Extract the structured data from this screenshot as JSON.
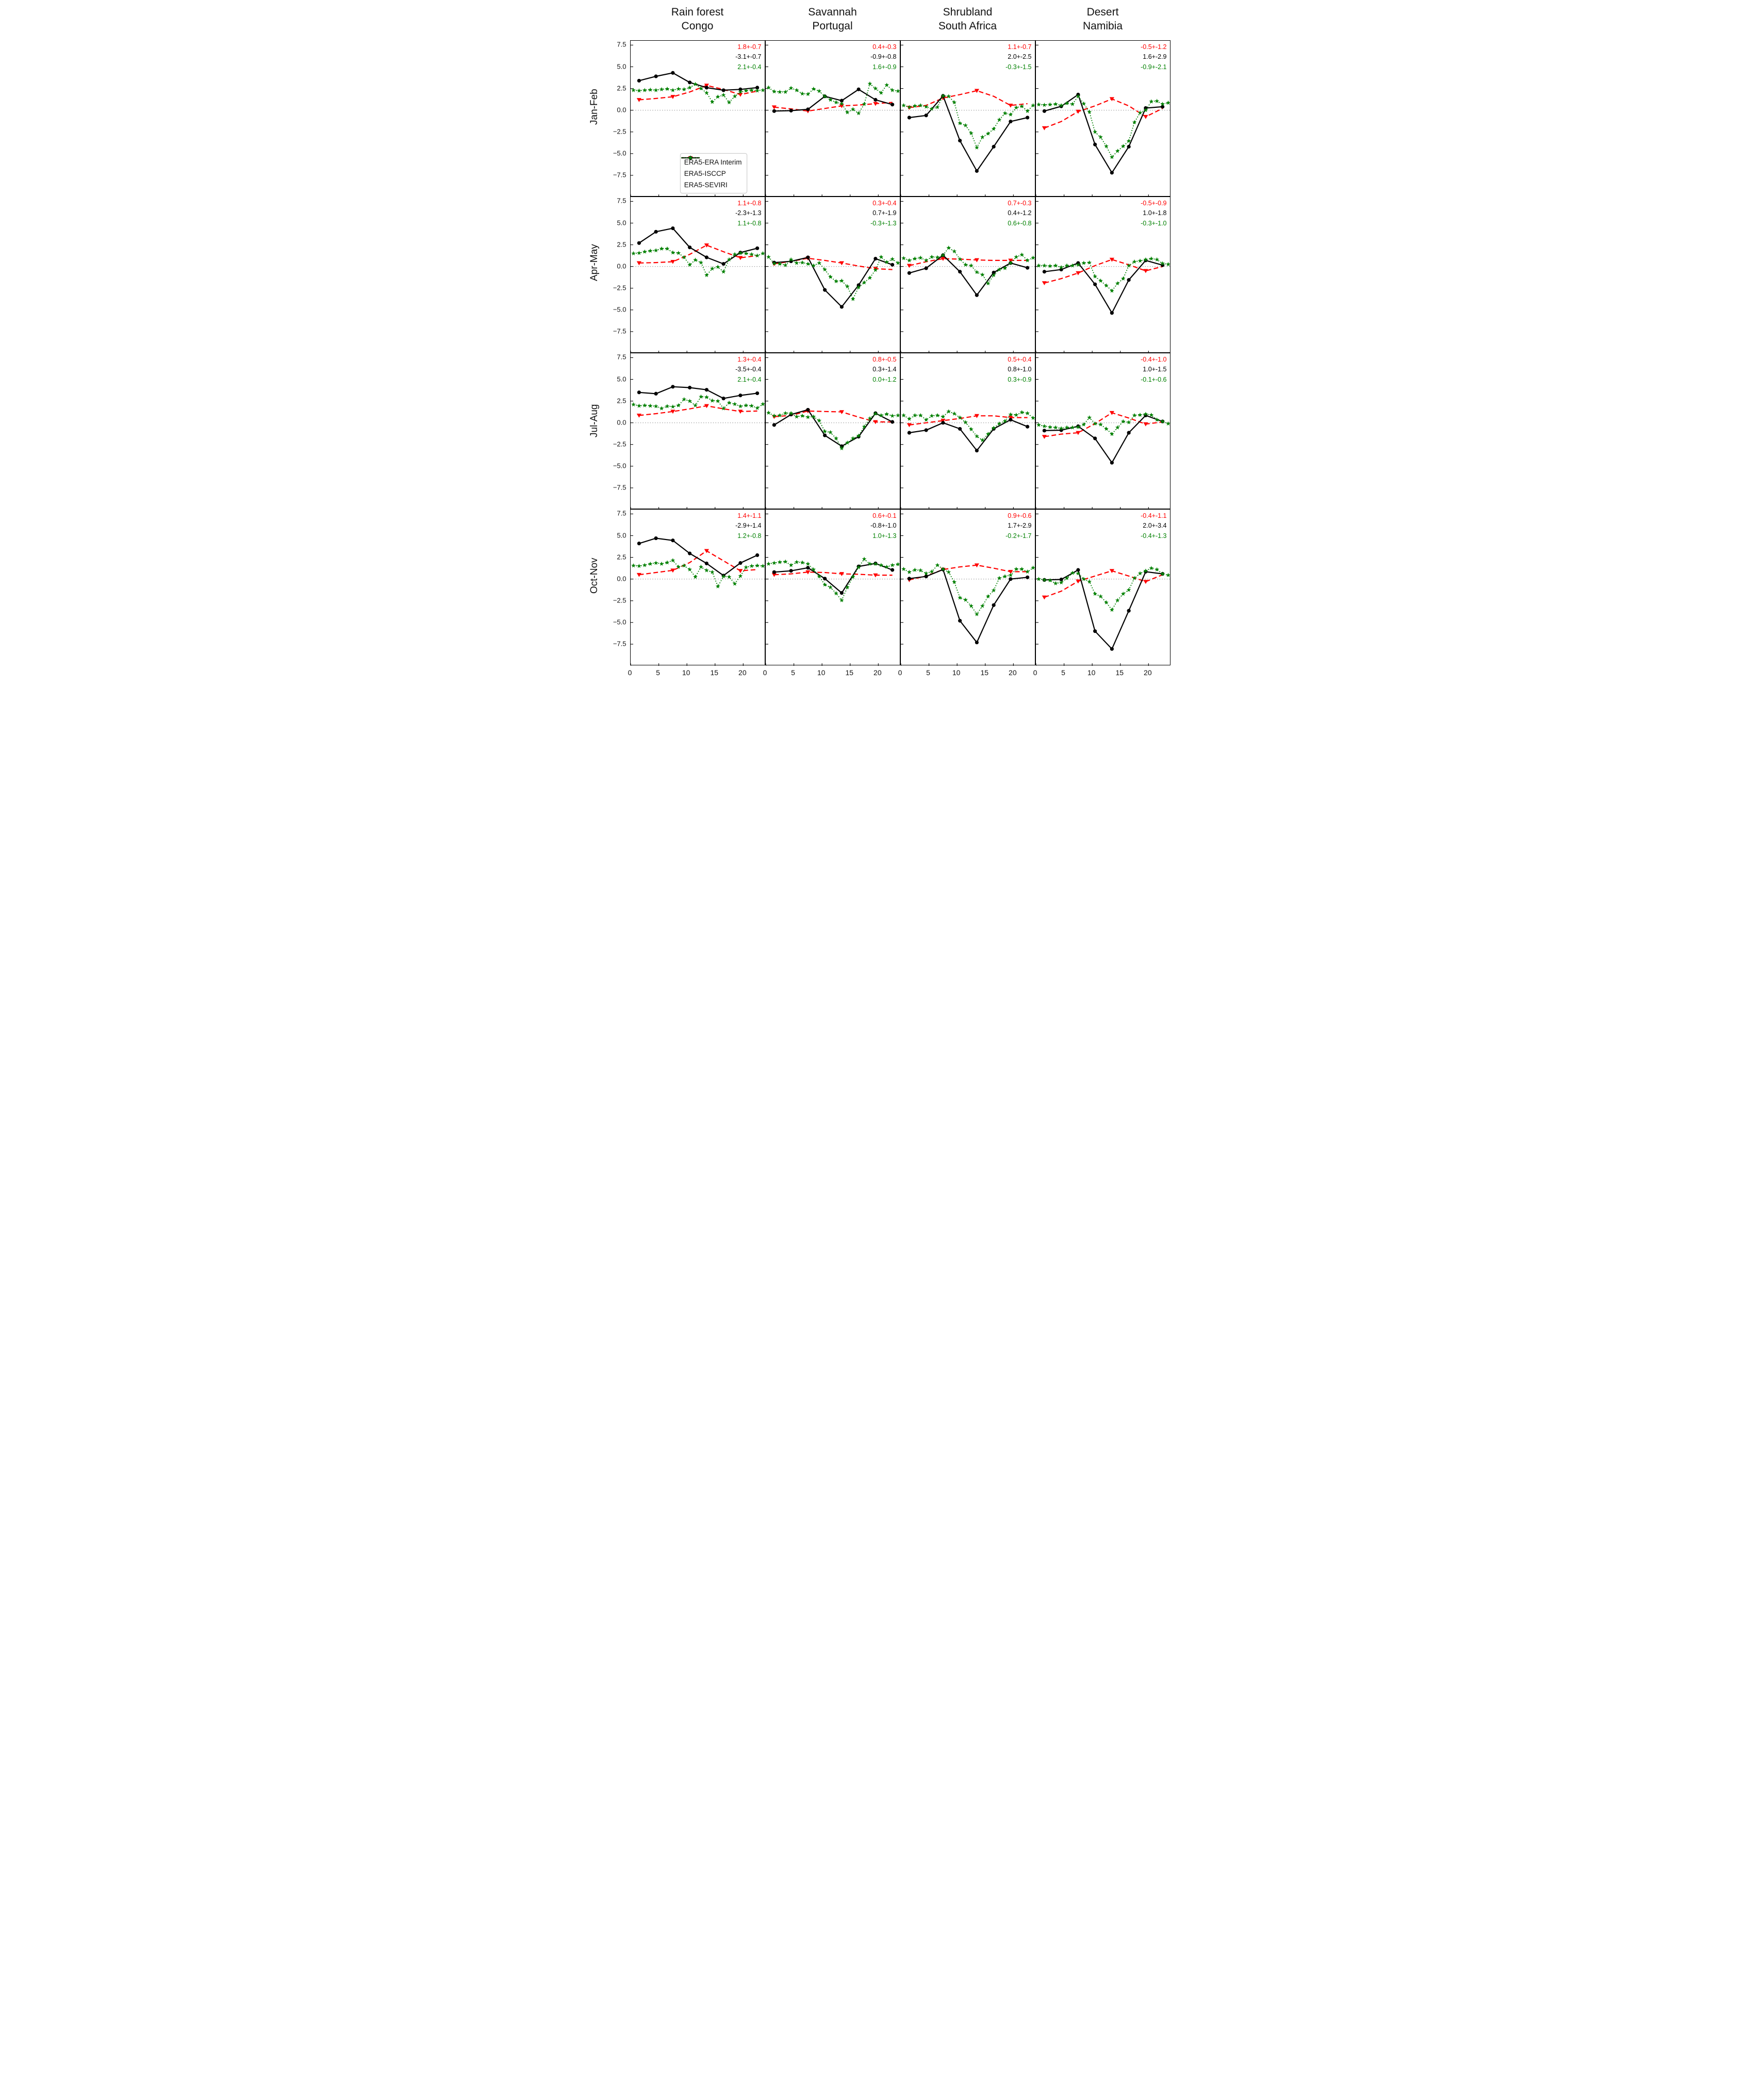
{
  "figure": {
    "columns": [
      {
        "title_line1": "Rain forest",
        "title_line2": "Congo"
      },
      {
        "title_line1": "Savannah",
        "title_line2": "Portugal"
      },
      {
        "title_line1": "Shrubland",
        "title_line2": "South Africa"
      },
      {
        "title_line1": "Desert",
        "title_line2": "Namibia"
      }
    ],
    "rows": [
      "Jan-Feb",
      "Apr-May",
      "Jul-Aug",
      "Oct-Nov"
    ],
    "legend": [
      {
        "label": "ERA5-ERA Interim",
        "series": "era5_era_interim"
      },
      {
        "label": "ERA5-ISCCP",
        "series": "era5_isccp"
      },
      {
        "label": "ERA5-SEVIRI",
        "series": "era5_seviri"
      }
    ],
    "colors": {
      "era5_era_interim": "#ff0000",
      "era5_isccp": "#000000",
      "era5_seviri": "#008000",
      "zero_line": "#909090",
      "axis": "#000000"
    }
  },
  "chart_data": {
    "type": "line",
    "xlim": [
      0,
      24
    ],
    "ylim": [
      -10,
      8
    ],
    "xticks": [
      0,
      5,
      10,
      15,
      20
    ],
    "yticks": [
      7.5,
      5.0,
      2.5,
      0.0,
      -2.5,
      -5.0,
      -7.5
    ],
    "ytick_labels": [
      "7.5",
      "5.0",
      "2.5",
      "0.0",
      "−2.5",
      "−5.0",
      "−7.5"
    ],
    "grid": false,
    "legend_position": "lower center of first panel",
    "x_hours_3h": [
      1.5,
      4.5,
      7.5,
      10.5,
      13.5,
      16.5,
      19.5,
      22.5
    ],
    "x_hours_1h": [
      0.5,
      1.5,
      2.5,
      3.5,
      4.5,
      5.5,
      6.5,
      7.5,
      8.5,
      9.5,
      10.5,
      11.5,
      12.5,
      13.5,
      14.5,
      15.5,
      16.5,
      17.5,
      18.5,
      19.5,
      20.5,
      21.5,
      22.5,
      23.5
    ],
    "panels": [
      {
        "region": "Rain forest Congo",
        "season": "Jan-Feb",
        "annotations": {
          "era5_era_interim": "1.8+-0.7",
          "era5_isccp": "-3.1+-0.7",
          "era5_seviri": "2.1+-0.4"
        },
        "series": {
          "era5_era_interim": [
            1.2,
            1.35,
            1.55,
            2.1,
            2.85,
            2.4,
            1.8,
            2.2
          ],
          "era5_isccp": [
            3.4,
            3.9,
            4.3,
            3.2,
            2.6,
            2.3,
            2.4,
            2.6
          ],
          "era5_seviri": [
            2.3,
            2.25,
            2.3,
            2.35,
            2.3,
            2.4,
            2.45,
            2.3,
            2.45,
            2.4,
            2.6,
            3.0,
            2.5,
            2.0,
            0.95,
            1.55,
            1.75,
            0.9,
            1.6,
            2.1,
            2.25,
            2.3,
            2.25,
            2.3
          ]
        }
      },
      {
        "region": "Savannah Portugal",
        "season": "Jan-Feb",
        "annotations": {
          "era5_era_interim": "0.4+-0.3",
          "era5_isccp": "-0.9+-0.8",
          "era5_seviri": "1.6+-0.9"
        },
        "series": {
          "era5_era_interim": [
            0.35,
            0.15,
            -0.1,
            0.2,
            0.5,
            0.6,
            0.75,
            0.9
          ],
          "era5_isccp": [
            -0.1,
            -0.05,
            0.1,
            1.6,
            1.1,
            2.4,
            1.2,
            0.65
          ],
          "era5_seviri": [
            2.6,
            2.15,
            2.1,
            2.1,
            2.55,
            2.3,
            1.9,
            1.85,
            2.45,
            2.2,
            1.6,
            1.2,
            0.9,
            0.75,
            -0.25,
            0.1,
            -0.35,
            0.7,
            3.05,
            2.5,
            2.0,
            2.9,
            2.3,
            2.2
          ]
        }
      },
      {
        "region": "Shrubland South Africa",
        "season": "Jan-Feb",
        "annotations": {
          "era5_era_interim": "1.1+-0.7",
          "era5_isccp": "2.0+-2.5",
          "era5_seviri": "-0.3+-1.5"
        },
        "series": {
          "era5_era_interim": [
            0.3,
            0.55,
            1.4,
            1.8,
            2.25,
            1.6,
            0.55,
            0.75
          ],
          "era5_isccp": [
            -0.85,
            -0.6,
            1.65,
            -3.5,
            -7.0,
            -4.2,
            -1.3,
            -0.85
          ],
          "era5_seviri": [
            0.55,
            0.35,
            0.5,
            0.55,
            0.4,
            0.15,
            0.35,
            1.65,
            1.6,
            0.9,
            -1.5,
            -1.75,
            -2.65,
            -4.3,
            -3.1,
            -2.7,
            -2.15,
            -1.1,
            -0.35,
            -0.5,
            0.3,
            0.45,
            -0.1,
            0.55
          ]
        }
      },
      {
        "region": "Desert Namibia",
        "season": "Jan-Feb",
        "annotations": {
          "era5_era_interim": "-0.5+-1.2",
          "era5_isccp": "1.6+-2.9",
          "era5_seviri": "-0.9+-2.1"
        },
        "series": {
          "era5_era_interim": [
            -2.05,
            -1.3,
            -0.15,
            0.5,
            1.3,
            0.5,
            -0.75,
            0.2
          ],
          "era5_isccp": [
            -0.1,
            0.45,
            1.8,
            -3.95,
            -7.2,
            -4.2,
            0.25,
            0.4
          ],
          "era5_seviri": [
            0.65,
            0.6,
            0.65,
            0.7,
            0.55,
            0.8,
            0.7,
            1.6,
            0.75,
            -0.2,
            -2.5,
            -3.1,
            -4.15,
            -5.4,
            -4.7,
            -4.15,
            -3.55,
            -1.4,
            -0.3,
            0.0,
            1.0,
            1.05,
            0.7,
            0.85
          ]
        }
      },
      {
        "region": "Rain forest Congo",
        "season": "Apr-May",
        "annotations": {
          "era5_era_interim": "1.1+-0.8",
          "era5_isccp": "-2.3+-1.3",
          "era5_seviri": "1.1+-0.8"
        },
        "series": {
          "era5_era_interim": [
            0.4,
            0.45,
            0.55,
            1.4,
            2.45,
            1.7,
            1.0,
            1.25
          ],
          "era5_isccp": [
            2.7,
            4.0,
            4.4,
            2.2,
            1.05,
            0.3,
            1.6,
            2.1
          ],
          "era5_seviri": [
            1.5,
            1.55,
            1.7,
            1.8,
            1.85,
            2.05,
            2.05,
            1.6,
            1.55,
            1.05,
            0.2,
            0.75,
            0.45,
            -1.0,
            -0.25,
            -0.05,
            -0.6,
            0.8,
            1.4,
            1.55,
            1.5,
            1.4,
            1.25,
            1.5
          ]
        }
      },
      {
        "region": "Savannah Portugal",
        "season": "Apr-May",
        "annotations": {
          "era5_era_interim": "0.3+-0.4",
          "era5_isccp": "0.7+-1.9",
          "era5_seviri": "-0.3+-1.3"
        },
        "series": {
          "era5_era_interim": [
            0.3,
            0.6,
            0.95,
            0.7,
            0.4,
            0.05,
            -0.25,
            -0.35
          ],
          "era5_isccp": [
            0.45,
            0.6,
            1.05,
            -2.7,
            -4.65,
            -2.15,
            0.9,
            0.2
          ],
          "era5_seviri": [
            1.1,
            0.35,
            0.3,
            0.15,
            0.8,
            0.4,
            0.45,
            0.3,
            0.1,
            0.4,
            -0.35,
            -1.2,
            -1.7,
            -1.65,
            -2.3,
            -3.75,
            -2.4,
            -1.85,
            -1.3,
            -0.4,
            1.1,
            0.5,
            0.85,
            0.4
          ]
        }
      },
      {
        "region": "Shrubland South Africa",
        "season": "Apr-May",
        "annotations": {
          "era5_era_interim": "0.7+-0.3",
          "era5_isccp": "0.4+-1.2",
          "era5_seviri": "0.6+-0.8"
        },
        "series": {
          "era5_era_interim": [
            0.1,
            0.55,
            0.9,
            0.85,
            0.75,
            0.7,
            0.7,
            0.7
          ],
          "era5_isccp": [
            -0.75,
            -0.2,
            1.3,
            -0.6,
            -3.3,
            -0.7,
            0.4,
            -0.15
          ],
          "era5_seviri": [
            0.95,
            0.7,
            0.9,
            1.0,
            0.7,
            1.1,
            1.05,
            1.3,
            2.15,
            1.75,
            0.85,
            0.2,
            0.1,
            -0.65,
            -0.95,
            -1.95,
            -1.0,
            -0.35,
            -0.2,
            0.4,
            1.1,
            1.35,
            0.7,
            1.0
          ]
        }
      },
      {
        "region": "Desert Namibia",
        "season": "Apr-May",
        "annotations": {
          "era5_era_interim": "-0.5+-0.9",
          "era5_isccp": "1.0+-1.8",
          "era5_seviri": "-0.3+-1.0"
        },
        "series": {
          "era5_era_interim": [
            -1.9,
            -1.4,
            -0.75,
            0.1,
            0.8,
            0.2,
            -0.5,
            0.0
          ],
          "era5_isccp": [
            -0.6,
            -0.35,
            0.4,
            -2.05,
            -5.35,
            -1.55,
            0.7,
            0.15
          ],
          "era5_seviri": [
            0.1,
            0.1,
            0.05,
            0.1,
            -0.1,
            0.1,
            0.1,
            0.2,
            0.4,
            0.45,
            -1.15,
            -1.65,
            -2.2,
            -2.8,
            -1.95,
            -1.4,
            0.1,
            0.55,
            0.65,
            0.8,
            0.9,
            0.8,
            0.35,
            0.25
          ]
        }
      },
      {
        "region": "Rain forest Congo",
        "season": "Jul-Aug",
        "annotations": {
          "era5_era_interim": "1.3+-0.4",
          "era5_isccp": "-3.5+-0.4",
          "era5_seviri": "2.1+-0.4"
        },
        "series": {
          "era5_era_interim": [
            0.85,
            1.05,
            1.3,
            1.6,
            1.95,
            1.6,
            1.3,
            1.35
          ],
          "era5_isccp": [
            3.5,
            3.35,
            4.15,
            4.05,
            3.8,
            2.8,
            3.15,
            3.4
          ],
          "era5_seviri": [
            2.1,
            1.95,
            2.0,
            1.95,
            1.9,
            1.65,
            1.9,
            1.85,
            2.0,
            2.7,
            2.5,
            2.0,
            3.0,
            2.95,
            2.55,
            2.5,
            1.65,
            2.3,
            2.15,
            1.9,
            2.0,
            1.95,
            1.7,
            2.15
          ]
        }
      },
      {
        "region": "Savannah Portugal",
        "season": "Jul-Aug",
        "annotations": {
          "era5_era_interim": "0.8+-0.5",
          "era5_isccp": "0.3+-1.4",
          "era5_seviri": "0.0+-1.2"
        },
        "series": {
          "era5_era_interim": [
            0.7,
            0.85,
            1.35,
            1.3,
            1.25,
            0.65,
            0.1,
            0.1
          ],
          "era5_isccp": [
            -0.25,
            0.95,
            1.5,
            -1.45,
            -2.7,
            -1.6,
            1.1,
            0.1
          ],
          "era5_seviri": [
            1.15,
            0.8,
            0.85,
            1.1,
            1.1,
            0.7,
            0.8,
            0.65,
            0.7,
            0.25,
            -1.0,
            -1.1,
            -1.8,
            -2.95,
            -2.3,
            -1.8,
            -1.5,
            -0.45,
            0.5,
            1.05,
            0.85,
            1.0,
            0.8,
            0.85
          ]
        }
      },
      {
        "region": "Shrubland South Africa",
        "season": "Jul-Aug",
        "annotations": {
          "era5_era_interim": "0.5+-0.4",
          "era5_isccp": "0.8+-1.0",
          "era5_seviri": "0.3+-0.9"
        },
        "series": {
          "era5_era_interim": [
            -0.25,
            0.0,
            0.25,
            0.5,
            0.8,
            0.8,
            0.6,
            0.6
          ],
          "era5_isccp": [
            -1.15,
            -0.85,
            0.0,
            -0.7,
            -3.2,
            -0.7,
            0.35,
            -0.45
          ],
          "era5_seviri": [
            0.85,
            0.45,
            0.85,
            0.85,
            0.35,
            0.8,
            0.85,
            0.7,
            1.3,
            1.05,
            0.6,
            0.05,
            -0.75,
            -1.55,
            -2.0,
            -1.3,
            -0.6,
            -0.1,
            0.2,
            0.95,
            0.9,
            1.2,
            1.1,
            0.55
          ]
        }
      },
      {
        "region": "Desert Namibia",
        "season": "Jul-Aug",
        "annotations": {
          "era5_era_interim": "-0.4+-1.0",
          "era5_isccp": "1.0+-1.5",
          "era5_seviri": "-0.1+-0.6"
        },
        "series": {
          "era5_era_interim": [
            -1.6,
            -1.3,
            -1.15,
            -0.1,
            1.15,
            0.55,
            -0.15,
            0.1
          ],
          "era5_isccp": [
            -0.9,
            -0.85,
            -0.4,
            -1.8,
            -4.6,
            -1.15,
            0.85,
            0.15
          ],
          "era5_seviri": [
            -0.25,
            -0.4,
            -0.5,
            -0.55,
            -0.65,
            -0.55,
            -0.55,
            -0.5,
            -0.2,
            0.6,
            -0.1,
            -0.2,
            -0.7,
            -1.3,
            -0.55,
            0.15,
            0.05,
            0.85,
            0.9,
            1.0,
            0.9,
            0.35,
            0.15,
            -0.1
          ]
        }
      },
      {
        "region": "Rain forest Congo",
        "season": "Oct-Nov",
        "annotations": {
          "era5_era_interim": "1.4+-1.1",
          "era5_isccp": "-2.9+-1.4",
          "era5_seviri": "1.2+-0.8"
        },
        "series": {
          "era5_era_interim": [
            0.5,
            0.75,
            1.0,
            1.9,
            3.25,
            2.1,
            0.95,
            1.1
          ],
          "era5_isccp": [
            4.1,
            4.7,
            4.45,
            2.95,
            1.8,
            0.4,
            1.85,
            2.75
          ],
          "era5_seviri": [
            1.55,
            1.5,
            1.6,
            1.75,
            1.85,
            1.75,
            1.9,
            2.15,
            1.4,
            1.55,
            1.1,
            0.25,
            1.4,
            1.0,
            0.8,
            -0.85,
            0.3,
            0.25,
            -0.55,
            0.35,
            1.35,
            1.5,
            1.55,
            1.5
          ]
        }
      },
      {
        "region": "Savannah Portugal",
        "season": "Oct-Nov",
        "annotations": {
          "era5_era_interim": "0.6+-0.1",
          "era5_isccp": "-0.8+-1.0",
          "era5_seviri": "1.0+-1.3"
        },
        "series": {
          "era5_era_interim": [
            0.5,
            0.6,
            0.8,
            0.75,
            0.6,
            0.55,
            0.45,
            0.45
          ],
          "era5_isccp": [
            0.8,
            0.95,
            1.3,
            0.05,
            -1.6,
            1.45,
            1.8,
            1.05
          ],
          "era5_seviri": [
            1.75,
            1.85,
            1.95,
            2.0,
            1.6,
            1.95,
            1.9,
            1.75,
            1.1,
            0.3,
            -0.65,
            -0.95,
            -1.65,
            -2.45,
            -0.95,
            0.25,
            1.35,
            2.3,
            1.75,
            1.75,
            1.6,
            1.4,
            1.6,
            1.7
          ]
        }
      },
      {
        "region": "Shrubland South Africa",
        "season": "Oct-Nov",
        "annotations": {
          "era5_era_interim": "0.9+-0.6",
          "era5_isccp": "1.7+-2.9",
          "era5_seviri": "-0.2+-1.7"
        },
        "series": {
          "era5_era_interim": [
            -0.1,
            0.35,
            1.1,
            1.4,
            1.6,
            1.25,
            0.85,
            0.85
          ],
          "era5_isccp": [
            0.05,
            0.3,
            1.1,
            -4.8,
            -7.3,
            -3.0,
            0.0,
            0.2
          ],
          "era5_seviri": [
            1.15,
            0.8,
            1.05,
            1.0,
            0.65,
            0.85,
            1.6,
            1.15,
            0.8,
            -0.35,
            -2.15,
            -2.4,
            -3.1,
            -4.05,
            -3.1,
            -2.0,
            -1.3,
            0.1,
            0.3,
            0.45,
            1.15,
            1.15,
            0.85,
            1.3
          ]
        }
      },
      {
        "region": "Desert Namibia",
        "season": "Oct-Nov",
        "annotations": {
          "era5_era_interim": "-0.4+-1.1",
          "era5_isccp": "2.0+-3.4",
          "era5_seviri": "-0.4+-1.3"
        },
        "series": {
          "era5_era_interim": [
            -2.1,
            -1.4,
            -0.25,
            0.35,
            0.95,
            0.35,
            -0.3,
            0.5
          ],
          "era5_isccp": [
            -0.1,
            -0.05,
            1.05,
            -6.0,
            -8.05,
            -3.65,
            0.85,
            0.6
          ],
          "era5_seviri": [
            0.0,
            -0.1,
            -0.15,
            -0.5,
            -0.4,
            0.1,
            0.7,
            0.65,
            0.0,
            -0.3,
            -1.7,
            -2.0,
            -2.7,
            -3.55,
            -2.45,
            -1.7,
            -1.25,
            0.1,
            0.65,
            0.95,
            1.25,
            1.1,
            0.6,
            0.45
          ]
        }
      }
    ]
  }
}
